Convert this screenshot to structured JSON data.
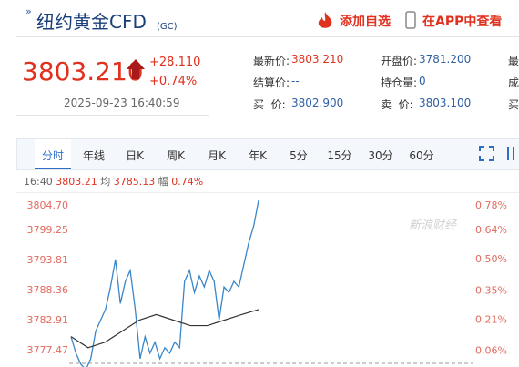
{
  "header": {
    "title": "纽约黄金CFD",
    "code": "(GC)",
    "actions": [
      "添加自选",
      "在APP中查看"
    ]
  },
  "quote": {
    "price": "3803.210",
    "change": "+28.110",
    "change_pct": "+0.74%",
    "time": "2025-09-23 16:40:59"
  },
  "stats": {
    "rows": [
      [
        "最新价:",
        "3803.210",
        "开盘价:",
        "3781.200",
        "最"
      ],
      [
        "结算价:",
        "--",
        "持仓量:",
        "0",
        "成"
      ],
      [
        "买  价:",
        "3802.900",
        "卖  价:",
        "3803.100",
        "买"
      ]
    ]
  },
  "tabs": [
    "分时",
    "年线",
    "日K",
    "周K",
    "月K",
    "年K",
    "5分",
    "15分",
    "30分",
    "60分"
  ],
  "info": {
    "time": "16:40",
    "price": "3803.21",
    "avg_label": "均",
    "avg": "3785.13",
    "range_label": "幅",
    "range": "0.74%"
  },
  "chart": {
    "watermark": "新浪财经",
    "ylim": [
      3774.5,
      3804.7
    ],
    "yticks": [
      {
        "value": 3804.7,
        "label": "3804.70"
      },
      {
        "value": 3799.25,
        "label": "3799.25"
      },
      {
        "value": 3793.81,
        "label": "3793.81"
      },
      {
        "value": 3788.36,
        "label": "3788.36"
      },
      {
        "value": 3782.91,
        "label": "3782.91"
      },
      {
        "value": 3777.47,
        "label": "3777.47"
      }
    ],
    "y2lim": [
      -0.016,
      0.784
    ],
    "y2ticks": [
      {
        "value": 0.78,
        "label": "0.78%"
      },
      {
        "value": 0.64,
        "label": "0.64%"
      },
      {
        "value": 0.5,
        "label": "0.50%"
      },
      {
        "value": 0.35,
        "label": "0.35%"
      },
      {
        "value": 0.21,
        "label": "0.21%"
      },
      {
        "value": 0.06,
        "label": "0.06%"
      }
    ],
    "series": [
      {
        "color": "#3a86c8",
        "values": [
          3780,
          3777,
          3775,
          3774,
          3776,
          3781,
          3783,
          3785,
          3789,
          3794,
          3786,
          3790,
          3792,
          3785,
          3776,
          3780,
          3777,
          3779,
          3776,
          3778,
          3777,
          3779,
          3778,
          3790,
          3792,
          3788,
          3791,
          3789,
          3792,
          3790,
          3783,
          3789,
          3788,
          3790,
          3789,
          3793,
          3797,
          3800,
          3804.7
        ]
      },
      {
        "color": "#333333",
        "values": [
          3780,
          3778,
          3779,
          3781,
          3783,
          3784,
          3783,
          3782,
          3782,
          3783,
          3784,
          3784.9
        ]
      }
    ]
  }
}
